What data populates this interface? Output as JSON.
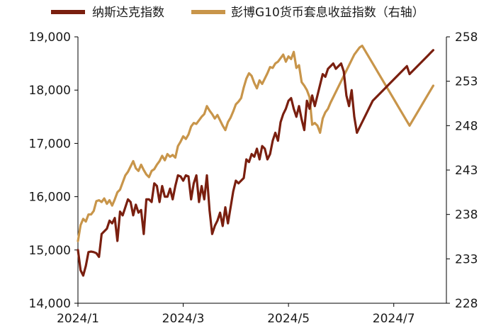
{
  "chart_data": {
    "type": "line",
    "legend": {
      "placement": "top",
      "entries": [
        "纳斯达克指数",
        "彭博G10货币套息收益指数（右轴）"
      ]
    },
    "colors": {
      "nasdaq": "#7a1f0f",
      "carry": "#c8954a",
      "axis": "#000000",
      "text": "#1a1a1a"
    },
    "x_axis": {
      "tick_labels": [
        "2024/1",
        "2024/3",
        "2024/5",
        "2024/7"
      ],
      "tick_positions": [
        0,
        2,
        4,
        6
      ],
      "xlim": [
        0,
        7.0
      ]
    },
    "y_left": {
      "tick_labels": [
        "14,000",
        "15,000",
        "16,000",
        "17,000",
        "18,000",
        "19,000"
      ],
      "tick_values": [
        14000,
        15000,
        16000,
        17000,
        18000,
        19000
      ],
      "ylim": [
        14000,
        19000
      ]
    },
    "y_right": {
      "tick_labels": [
        "228",
        "233",
        "238",
        "243",
        "248",
        "253",
        "258"
      ],
      "tick_values": [
        228,
        233,
        238,
        243,
        248,
        253,
        258
      ],
      "ylim": [
        228,
        258
      ]
    },
    "series": [
      {
        "name": "纳斯达克指数",
        "axis": "left",
        "x": [
          0.0,
          0.05,
          0.1,
          0.15,
          0.2,
          0.25,
          0.3,
          0.35,
          0.4,
          0.45,
          0.5,
          0.55,
          0.6,
          0.65,
          0.7,
          0.75,
          0.8,
          0.85,
          0.9,
          0.95,
          1.0,
          1.05,
          1.1,
          1.15,
          1.2,
          1.25,
          1.3,
          1.35,
          1.4,
          1.45,
          1.5,
          1.55,
          1.6,
          1.65,
          1.7,
          1.75,
          1.8,
          1.85,
          1.9,
          1.95,
          2.0,
          2.05,
          2.1,
          2.15,
          2.2,
          2.25,
          2.3,
          2.35,
          2.4,
          2.45,
          2.5,
          2.55,
          2.6,
          2.65,
          2.7,
          2.75,
          2.8,
          2.85,
          2.9,
          2.95,
          3.0,
          3.05,
          3.1,
          3.15,
          3.2,
          3.25,
          3.3,
          3.35,
          3.4,
          3.45,
          3.5,
          3.55,
          3.6,
          3.65,
          3.7,
          3.75,
          3.8,
          3.85,
          3.9,
          3.95,
          4.0,
          4.05,
          4.1,
          4.15,
          4.2,
          4.25,
          4.3,
          4.35,
          4.4,
          4.45,
          4.5,
          4.55,
          4.6,
          4.65,
          4.7,
          4.75,
          4.8,
          4.85,
          4.9,
          4.95,
          5.0,
          5.05,
          5.1,
          5.15,
          5.2,
          5.25,
          5.3,
          5.35,
          5.4,
          5.45,
          5.5,
          5.55,
          5.6,
          5.65,
          5.7,
          5.75,
          5.8,
          5.85,
          5.9,
          5.95,
          6.0,
          6.05,
          6.1,
          6.15,
          6.2,
          6.25,
          6.3,
          6.35,
          6.4,
          6.45,
          6.5,
          6.55,
          6.6,
          6.65,
          6.7,
          6.75
        ],
        "values": [
          15000,
          14620,
          14520,
          14700,
          14960,
          14970,
          14960,
          14940,
          14870,
          15300,
          15350,
          15400,
          15550,
          15500,
          15600,
          15170,
          15720,
          15650,
          15800,
          15950,
          15900,
          15650,
          15850,
          15700,
          15750,
          15300,
          15950,
          15950,
          15900,
          16250,
          16200,
          15900,
          16200,
          16000,
          16000,
          16150,
          15950,
          16200,
          16400,
          16380,
          16300,
          16400,
          16380,
          15950,
          16250,
          16400,
          15900,
          16200,
          15950,
          16400,
          15750,
          15300,
          15450,
          15550,
          15700,
          15450,
          15800,
          15500,
          15800,
          16100,
          16300,
          16250,
          16300,
          16350,
          16700,
          16650,
          16800,
          16750,
          16900,
          16700,
          16950,
          16900,
          16700,
          16800,
          17050,
          17200,
          17050,
          17400,
          17550,
          17650,
          17800,
          17850,
          17650,
          17500,
          17700,
          17450,
          17250,
          17800,
          17650,
          17900,
          17700,
          17900,
          18100,
          18300,
          18250,
          18400,
          18450,
          18500,
          18400,
          18450,
          18500,
          18350,
          17900,
          17700,
          18000,
          17500,
          17200,
          17300,
          17400,
          17500,
          17600,
          17700,
          17800,
          17850,
          17900,
          17950,
          18000,
          18050,
          18100,
          18150,
          18200,
          18250,
          18300,
          18350,
          18400,
          18450,
          18300,
          18350,
          18400,
          18450,
          18500,
          18550,
          18600,
          18650,
          18700,
          18750
        ]
      },
      {
        "name": "彭博G10货币套息收益指数（右轴）",
        "axis": "right",
        "x": [
          0.0,
          0.05,
          0.1,
          0.15,
          0.2,
          0.25,
          0.3,
          0.35,
          0.4,
          0.45,
          0.5,
          0.55,
          0.6,
          0.65,
          0.7,
          0.75,
          0.8,
          0.85,
          0.9,
          0.95,
          1.0,
          1.05,
          1.1,
          1.15,
          1.2,
          1.25,
          1.3,
          1.35,
          1.4,
          1.45,
          1.5,
          1.55,
          1.6,
          1.65,
          1.7,
          1.75,
          1.8,
          1.85,
          1.9,
          1.95,
          2.0,
          2.05,
          2.1,
          2.15,
          2.2,
          2.25,
          2.3,
          2.35,
          2.4,
          2.45,
          2.5,
          2.55,
          2.6,
          2.65,
          2.7,
          2.75,
          2.8,
          2.85,
          2.9,
          2.95,
          3.0,
          3.05,
          3.1,
          3.15,
          3.2,
          3.25,
          3.3,
          3.35,
          3.4,
          3.45,
          3.5,
          3.55,
          3.6,
          3.65,
          3.7,
          3.75,
          3.8,
          3.85,
          3.9,
          3.95,
          4.0,
          4.05,
          4.1,
          4.15,
          4.2,
          4.25,
          4.3,
          4.35,
          4.4,
          4.45,
          4.5,
          4.55,
          4.6,
          4.65,
          4.7,
          4.75,
          4.8,
          4.85,
          4.9,
          4.95,
          5.0,
          5.05,
          5.1,
          5.15,
          5.2,
          5.25,
          5.3,
          5.35,
          5.4,
          5.45,
          5.5,
          5.55,
          5.6,
          5.65,
          5.7,
          5.75,
          5.8,
          5.85,
          5.9,
          5.95,
          6.0,
          6.05,
          6.1,
          6.15,
          6.2,
          6.25,
          6.3,
          6.35,
          6.4,
          6.45,
          6.5,
          6.55,
          6.6,
          6.65,
          6.7,
          6.75
        ],
        "values": [
          235.0,
          236.8,
          237.5,
          237.2,
          238.0,
          238.0,
          238.4,
          239.5,
          239.6,
          239.4,
          239.8,
          239.2,
          239.6,
          239.0,
          239.7,
          240.5,
          240.8,
          241.6,
          242.4,
          242.8,
          243.4,
          244.0,
          243.2,
          242.9,
          243.6,
          243.0,
          242.5,
          242.2,
          242.9,
          243.1,
          243.6,
          244.0,
          244.6,
          244.1,
          244.8,
          244.5,
          244.7,
          244.4,
          245.7,
          246.2,
          246.8,
          246.5,
          247.0,
          247.9,
          248.3,
          248.2,
          248.6,
          249.0,
          249.3,
          250.2,
          249.7,
          249.3,
          248.8,
          249.2,
          248.6,
          248.0,
          247.5,
          248.4,
          248.9,
          249.6,
          250.4,
          250.7,
          251.1,
          252.3,
          253.3,
          253.9,
          253.6,
          252.8,
          252.2,
          253.1,
          252.7,
          253.3,
          253.9,
          254.6,
          254.5,
          255.0,
          255.2,
          255.6,
          256.0,
          255.2,
          255.8,
          255.5,
          256.3,
          254.5,
          254.8,
          252.9,
          252.5,
          252.0,
          251.2,
          248.1,
          248.3,
          248.0,
          247.2,
          248.8,
          249.5,
          249.9,
          250.6,
          251.2,
          251.8,
          252.4,
          253.0,
          253.6,
          254.2,
          254.8,
          255.4,
          256.0,
          256.4,
          256.8,
          257.0,
          256.5,
          256.0,
          255.5,
          255.0,
          254.5,
          254.0,
          253.5,
          253.0,
          252.5,
          252.0,
          251.5,
          251.0,
          250.5,
          250.0,
          249.5,
          249.0,
          248.5,
          248.0,
          248.5,
          249.0,
          249.5,
          250.0,
          250.5,
          251.0,
          251.5,
          252.0,
          252.5
        ]
      }
    ]
  }
}
